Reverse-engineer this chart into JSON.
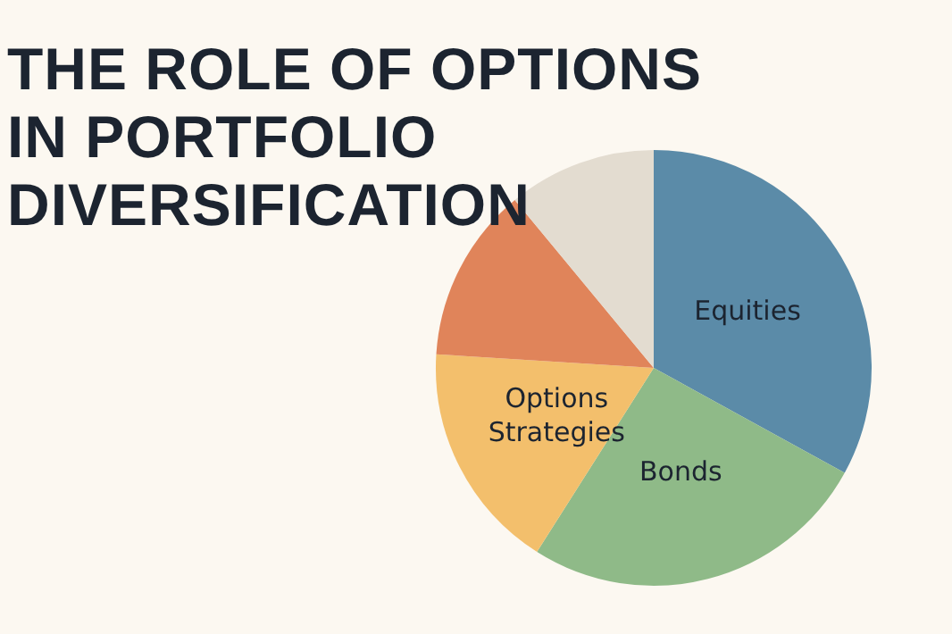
{
  "chart_data": {
    "type": "pie",
    "title": "THE ROLE OF OPTIONS IN PORTFOLIO DIVERSIFICATION",
    "categories": [
      "Equities",
      "Bonds",
      "Options Strategies",
      null,
      null
    ],
    "values": [
      33,
      26,
      17,
      13,
      11
    ],
    "colors": [
      "#5b8ba8",
      "#8fba88",
      "#f3bf6c",
      "#e0845a",
      "#e3dcd0"
    ],
    "legend": false
  }
}
